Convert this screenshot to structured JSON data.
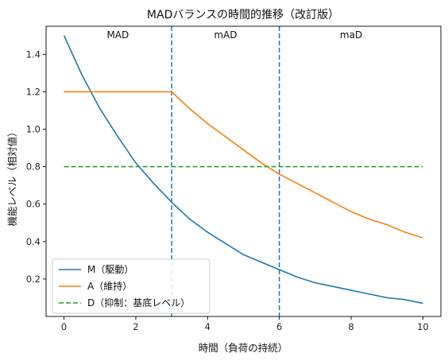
{
  "chart_data": {
    "type": "line",
    "title": "MADバランスの時間的推移（改訂版）",
    "xlabel": "時間（負荷の持続）",
    "ylabel": "機能レベル（相対値）",
    "xlim": [
      -0.5,
      10.5
    ],
    "ylim": [
      0.0,
      1.55
    ],
    "x_ticks": [
      0,
      2,
      4,
      6,
      8,
      10
    ],
    "x_tick_labels": [
      "0",
      "2",
      "4",
      "6",
      "8",
      "10"
    ],
    "y_ticks": [
      0.2,
      0.4,
      0.6,
      0.8,
      1.0,
      1.2,
      1.4
    ],
    "y_tick_labels": [
      "0.2",
      "0.4",
      "0.6",
      "0.8",
      "1.0",
      "1.2",
      "1.4"
    ],
    "grid": false,
    "legend_position": "lower-left",
    "series": [
      {
        "name": "M（駆動）",
        "color": "#1f77b4",
        "dash": "solid",
        "x": [
          0,
          0.5,
          1,
          1.5,
          2,
          2.5,
          3,
          3.5,
          4,
          4.5,
          5,
          5.5,
          6,
          6.5,
          7,
          7.5,
          8,
          8.5,
          9,
          9.5,
          10
        ],
        "y": [
          1.5,
          1.29,
          1.11,
          0.96,
          0.82,
          0.71,
          0.61,
          0.52,
          0.45,
          0.39,
          0.33,
          0.29,
          0.25,
          0.21,
          0.18,
          0.16,
          0.14,
          0.12,
          0.1,
          0.09,
          0.07
        ]
      },
      {
        "name": "A（維持）",
        "color": "#ff7f0e",
        "dash": "solid",
        "x": [
          0,
          0.5,
          1,
          1.5,
          2,
          2.5,
          3,
          3.5,
          4,
          4.5,
          5,
          5.5,
          6,
          6.5,
          7,
          7.5,
          8,
          8.5,
          9,
          9.5,
          10
        ],
        "y": [
          1.2,
          1.2,
          1.2,
          1.2,
          1.2,
          1.2,
          1.2,
          1.11,
          1.03,
          0.96,
          0.89,
          0.82,
          0.76,
          0.71,
          0.66,
          0.61,
          0.56,
          0.52,
          0.49,
          0.45,
          0.42
        ]
      },
      {
        "name": "D（抑制：基底レベル）",
        "color": "#2ca02c",
        "dash": "dashed",
        "x": [
          0,
          10
        ],
        "y": [
          0.8,
          0.8
        ]
      }
    ],
    "vlines": [
      {
        "x": 3,
        "color": "#1f77b4",
        "dash": "dashed"
      },
      {
        "x": 6,
        "color": "#1f77b4",
        "dash": "dashed"
      }
    ],
    "phase_labels": [
      {
        "text": "MAD",
        "x": 1.5
      },
      {
        "text": "mAD",
        "x": 4.5
      },
      {
        "text": "maD",
        "x": 8.0
      }
    ]
  }
}
